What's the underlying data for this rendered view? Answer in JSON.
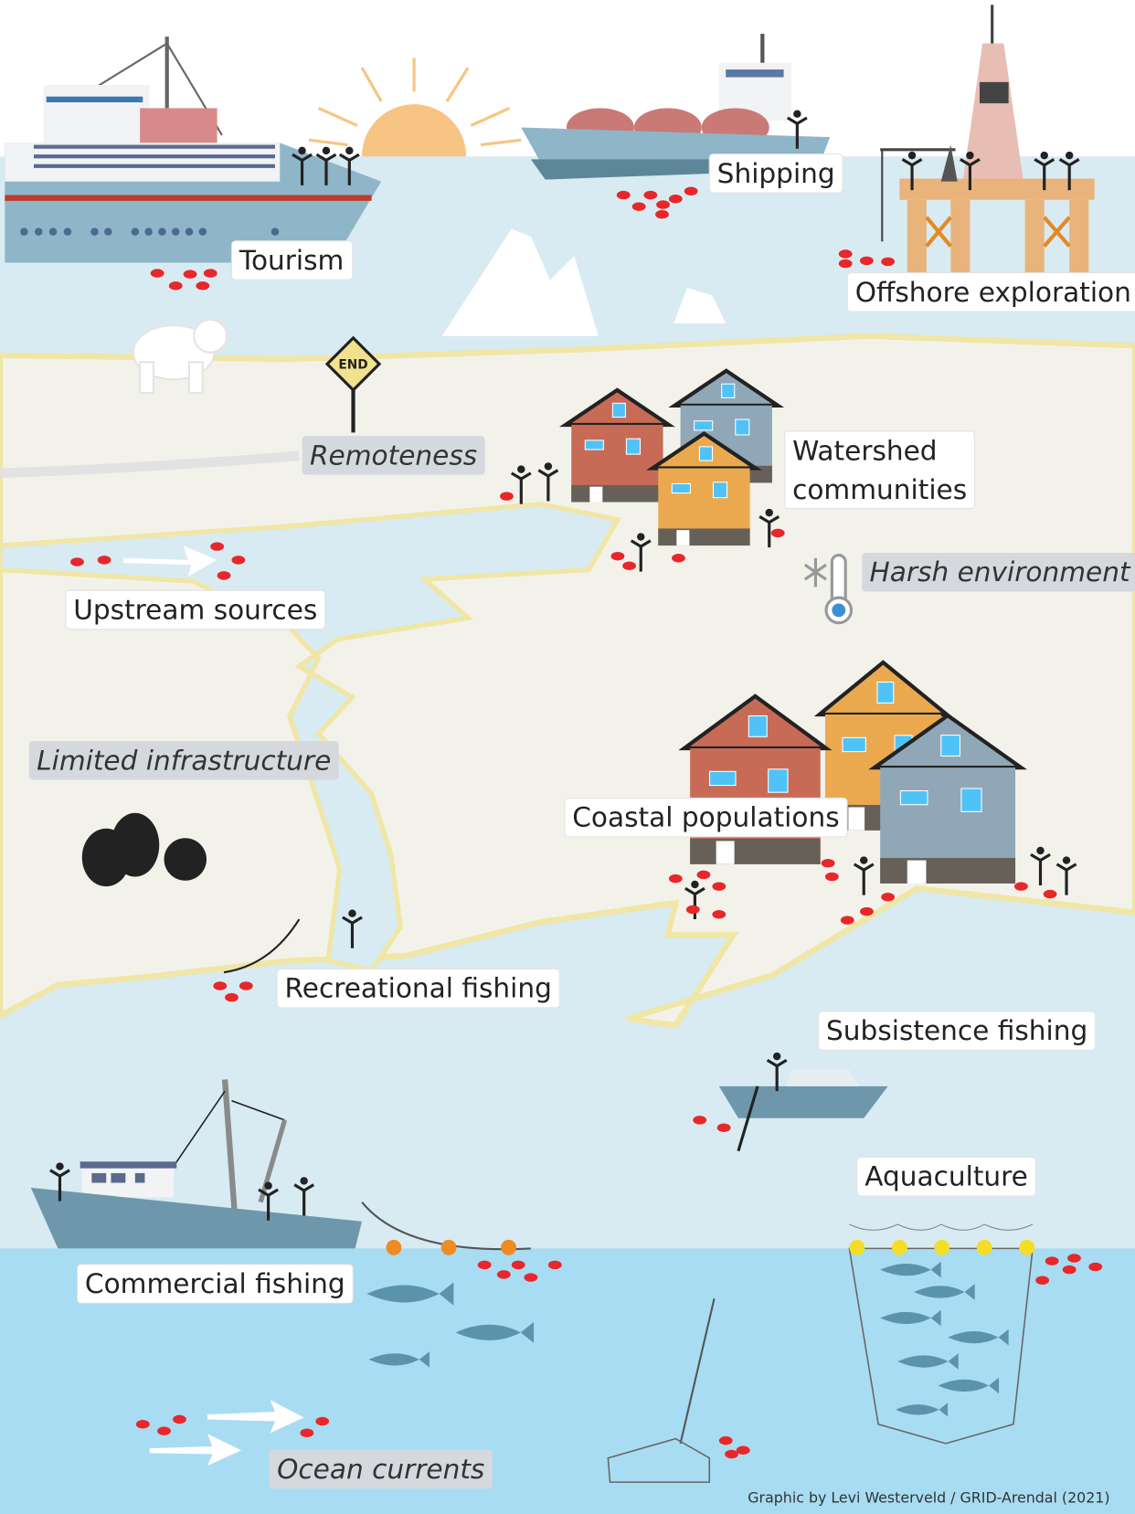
{
  "sources": [
    "Tourism",
    "Shipping",
    "Offshore exploration",
    "Watershed communities",
    "Upstream sources",
    "Coastal populations",
    "Recreational fishing",
    "Subsistence fishing",
    "Aquaculture",
    "Commercial fishing"
  ],
  "barriers": [
    "Remoteness",
    "Harsh environment",
    "Limited infrastructure",
    "Ocean currents"
  ],
  "sign": "END",
  "credit": "Graphic by Levi Westerveld / GRID-Arendal (2021)"
}
